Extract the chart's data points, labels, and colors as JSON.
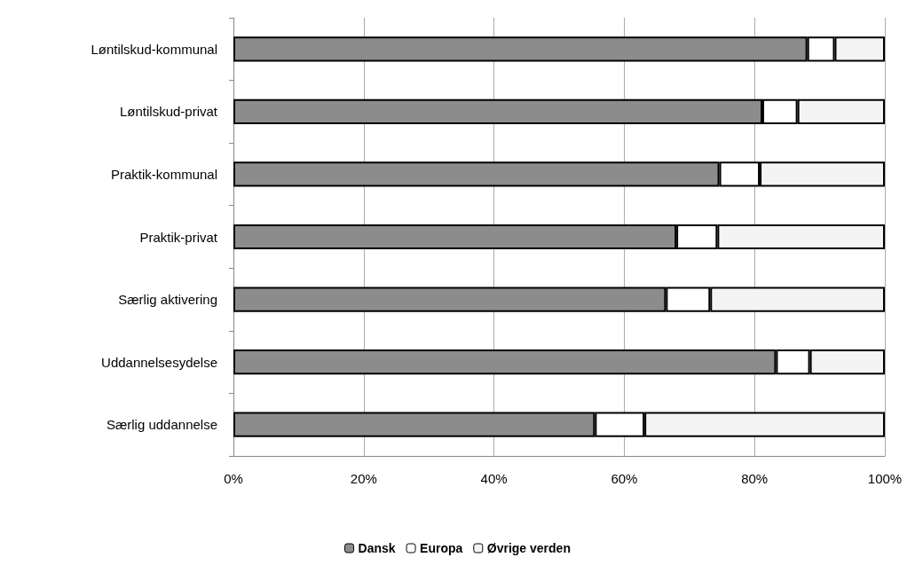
{
  "chart_data": {
    "type": "bar",
    "orientation": "horizontal",
    "stacked": true,
    "categories": [
      "Løntilskud-kommunal",
      "Løntilskud-privat",
      "Praktik-kommunal",
      "Praktik-privat",
      "Særlig aktivering",
      "Uddannelsesydelse",
      "Særlig uddannelse"
    ],
    "series": [
      {
        "name": "Dansk",
        "color": "#8c8c8c",
        "values": [
          88.1,
          81.2,
          74.6,
          68,
          66.4,
          83.3,
          55.5
        ]
      },
      {
        "name": "Europa",
        "color": "#ffffff",
        "values": [
          4.2,
          5.4,
          6.2,
          6.3,
          6.8,
          5.2,
          7.6
        ]
      },
      {
        "name": "Øvrige verden",
        "color": "#f4f4f4",
        "values": [
          7.7,
          13.4,
          19.2,
          25.7,
          26.8,
          11.5,
          36.9
        ]
      }
    ],
    "xlim": [
      0,
      100
    ],
    "xticks": [
      {
        "value": 0,
        "label": "0%"
      },
      {
        "value": 20,
        "label": "20%"
      },
      {
        "value": 40,
        "label": "40%"
      },
      {
        "value": 60,
        "label": "60%"
      },
      {
        "value": 80,
        "label": "80%"
      },
      {
        "value": 100,
        "label": "100%"
      }
    ],
    "grid": "x",
    "legend": "bottom"
  }
}
